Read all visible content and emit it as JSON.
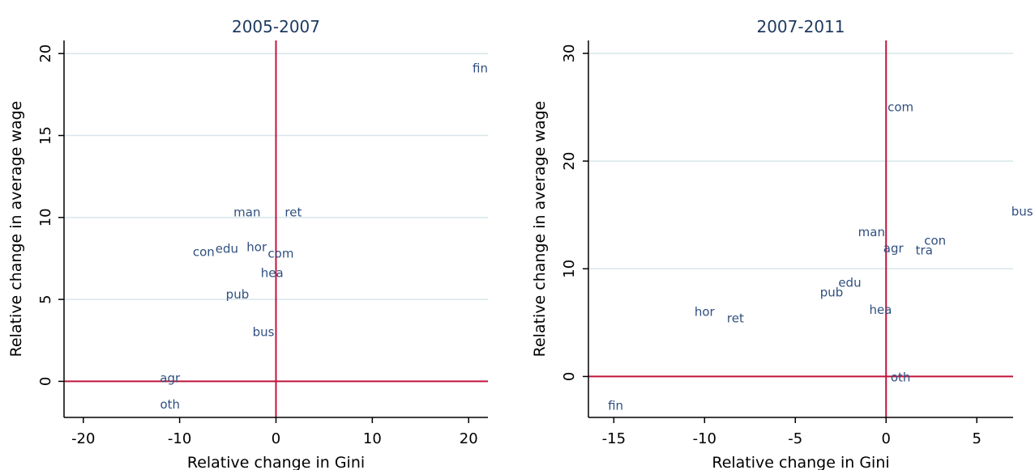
{
  "chart_data": [
    {
      "type": "scatter",
      "title": "2005-2007",
      "xlabel": "Relative change in Gini",
      "ylabel": "Relative change in average wage",
      "xlim": [
        -22,
        22
      ],
      "ylim": [
        -2.2,
        20.8
      ],
      "xticks": [
        -20,
        -10,
        0,
        10,
        20
      ],
      "yticks": [
        0,
        5,
        10,
        15,
        20
      ],
      "grid": "horizontal",
      "reference_lines": {
        "x": 0,
        "y": 0,
        "color": "#c0143c"
      },
      "points": [
        {
          "label": "fin",
          "x": 21.2,
          "y": 19.1
        },
        {
          "label": "man",
          "x": -3.0,
          "y": 10.3
        },
        {
          "label": "ret",
          "x": 1.8,
          "y": 10.3
        },
        {
          "label": "con",
          "x": -7.5,
          "y": 7.9
        },
        {
          "label": "edu",
          "x": -5.1,
          "y": 8.1
        },
        {
          "label": "hor",
          "x": -2.0,
          "y": 8.2
        },
        {
          "label": "com",
          "x": 0.5,
          "y": 7.8
        },
        {
          "label": "hea",
          "x": -0.4,
          "y": 6.6
        },
        {
          "label": "pub",
          "x": -4.0,
          "y": 5.3
        },
        {
          "label": "bus",
          "x": -1.3,
          "y": 3.0
        },
        {
          "label": "agr",
          "x": -11.0,
          "y": 0.2
        },
        {
          "label": "oth",
          "x": -11.0,
          "y": -1.4
        }
      ]
    },
    {
      "type": "scatter",
      "title": "2007-2011",
      "xlabel": "Relative change in Gini",
      "ylabel": "Relative change in average wage",
      "xlim": [
        -16.4,
        7.0
      ],
      "ylim": [
        -3.8,
        31.2
      ],
      "xticks": [
        -15,
        -10,
        -5,
        0,
        5
      ],
      "yticks": [
        0,
        10,
        20,
        30
      ],
      "grid": "horizontal",
      "reference_lines": {
        "x": 0,
        "y": 0,
        "color": "#c0143c"
      },
      "points": [
        {
          "label": "com",
          "x": 0.8,
          "y": 25.0
        },
        {
          "label": "bus",
          "x": 7.5,
          "y": 15.3
        },
        {
          "label": "man",
          "x": -0.8,
          "y": 13.4
        },
        {
          "label": "con",
          "x": 2.7,
          "y": 12.6
        },
        {
          "label": "agr",
          "x": 0.4,
          "y": 11.9
        },
        {
          "label": "tra",
          "x": 2.1,
          "y": 11.7
        },
        {
          "label": "edu",
          "x": -2.0,
          "y": 8.7
        },
        {
          "label": "pub",
          "x": -3.0,
          "y": 7.8
        },
        {
          "label": "hea",
          "x": -0.3,
          "y": 6.2
        },
        {
          "label": "hor",
          "x": -10.0,
          "y": 6.0
        },
        {
          "label": "ret",
          "x": -8.3,
          "y": 5.4
        },
        {
          "label": "oth",
          "x": 0.8,
          "y": -0.1
        },
        {
          "label": "fin",
          "x": -14.9,
          "y": -2.7
        }
      ]
    }
  ],
  "colors": {
    "reference_line": "#c0143c",
    "grid": "#d8e6ea",
    "point_label": "#2f4f7f",
    "title": "#1e3a5f"
  }
}
